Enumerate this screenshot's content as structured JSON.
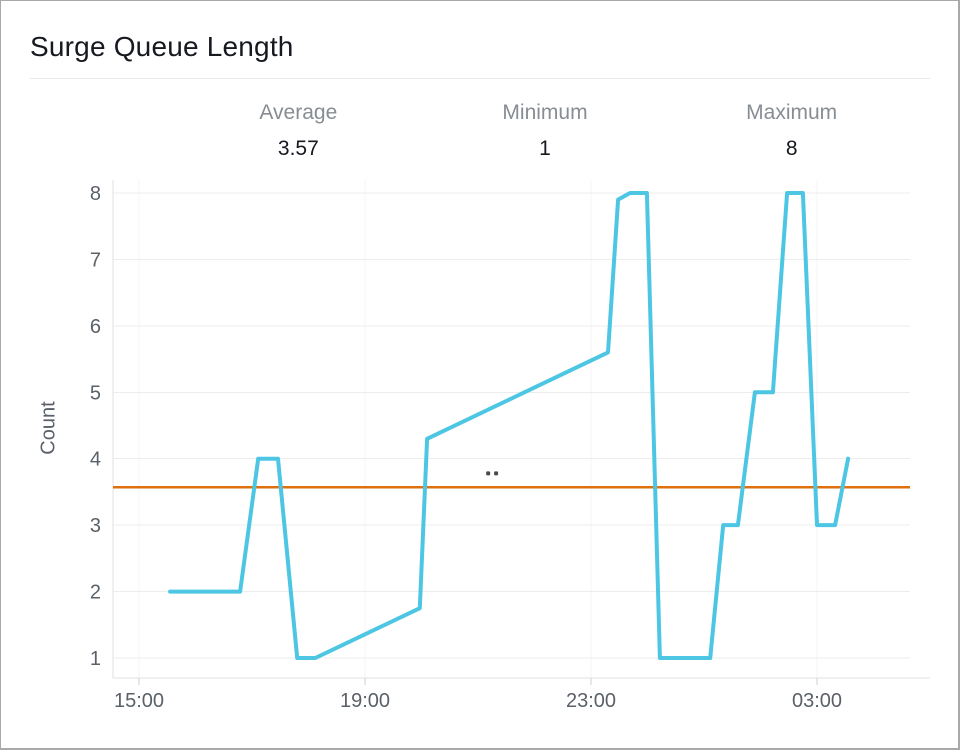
{
  "panel": {
    "title": "Surge Queue Length"
  },
  "stats": [
    {
      "label": "Average",
      "value": "3.57"
    },
    {
      "label": "Minimum",
      "value": "1"
    },
    {
      "label": "Maximum",
      "value": "8"
    }
  ],
  "colors": {
    "series_line": "#4cc6e3",
    "average_line": "#de710e",
    "stat_label_gray": "#878d93",
    "text_dark": "#16191f",
    "axis_text": "#5b6168",
    "panel_border": "#a9a9a9"
  },
  "chart_data": {
    "type": "line",
    "title": "Surge Queue Length",
    "xlabel": "",
    "ylabel": "Count",
    "x_unit": "hours_after_15:00",
    "xlim": [
      -0.46,
      13.65
    ],
    "ylim": [
      1,
      8
    ],
    "grid": true,
    "legend": "none",
    "yticks": [
      1,
      2,
      3,
      4,
      5,
      6,
      7,
      8
    ],
    "xticks": [
      {
        "h": 0,
        "label": "15:00"
      },
      {
        "h": 4,
        "label": "19:00"
      },
      {
        "h": 8,
        "label": "23:00"
      },
      {
        "h": 12,
        "label": "03:00"
      }
    ],
    "stats": {
      "average": 3.57,
      "minimum": 1,
      "maximum": 8
    },
    "average_reference_line": {
      "value": 3.57,
      "color": "#de710e"
    },
    "series": [
      {
        "name": "Surge Queue Length",
        "color": "#4cc6e3",
        "points": [
          [
            0.55,
            2
          ],
          [
            1.79,
            2
          ],
          [
            2.11,
            4
          ],
          [
            2.46,
            4
          ],
          [
            2.8,
            1
          ],
          [
            3.12,
            1
          ],
          [
            4.97,
            1.75
          ],
          [
            5.1,
            4.3
          ],
          [
            8.3,
            5.6
          ],
          [
            8.48,
            7.9
          ],
          [
            8.69,
            8
          ],
          [
            8.99,
            8
          ],
          [
            9.22,
            1
          ],
          [
            10.11,
            1
          ],
          [
            10.34,
            3
          ],
          [
            10.6,
            3
          ],
          [
            10.9,
            5
          ],
          [
            11.22,
            5
          ],
          [
            11.47,
            8
          ],
          [
            11.75,
            8
          ],
          [
            12.0,
            3
          ],
          [
            12.32,
            3
          ],
          [
            12.55,
            4
          ]
        ]
      }
    ],
    "cursor_dots": {
      "color": "#4b4b4b",
      "points": [
        [
          6.18,
          3.78
        ],
        [
          6.32,
          3.78
        ]
      ]
    }
  }
}
